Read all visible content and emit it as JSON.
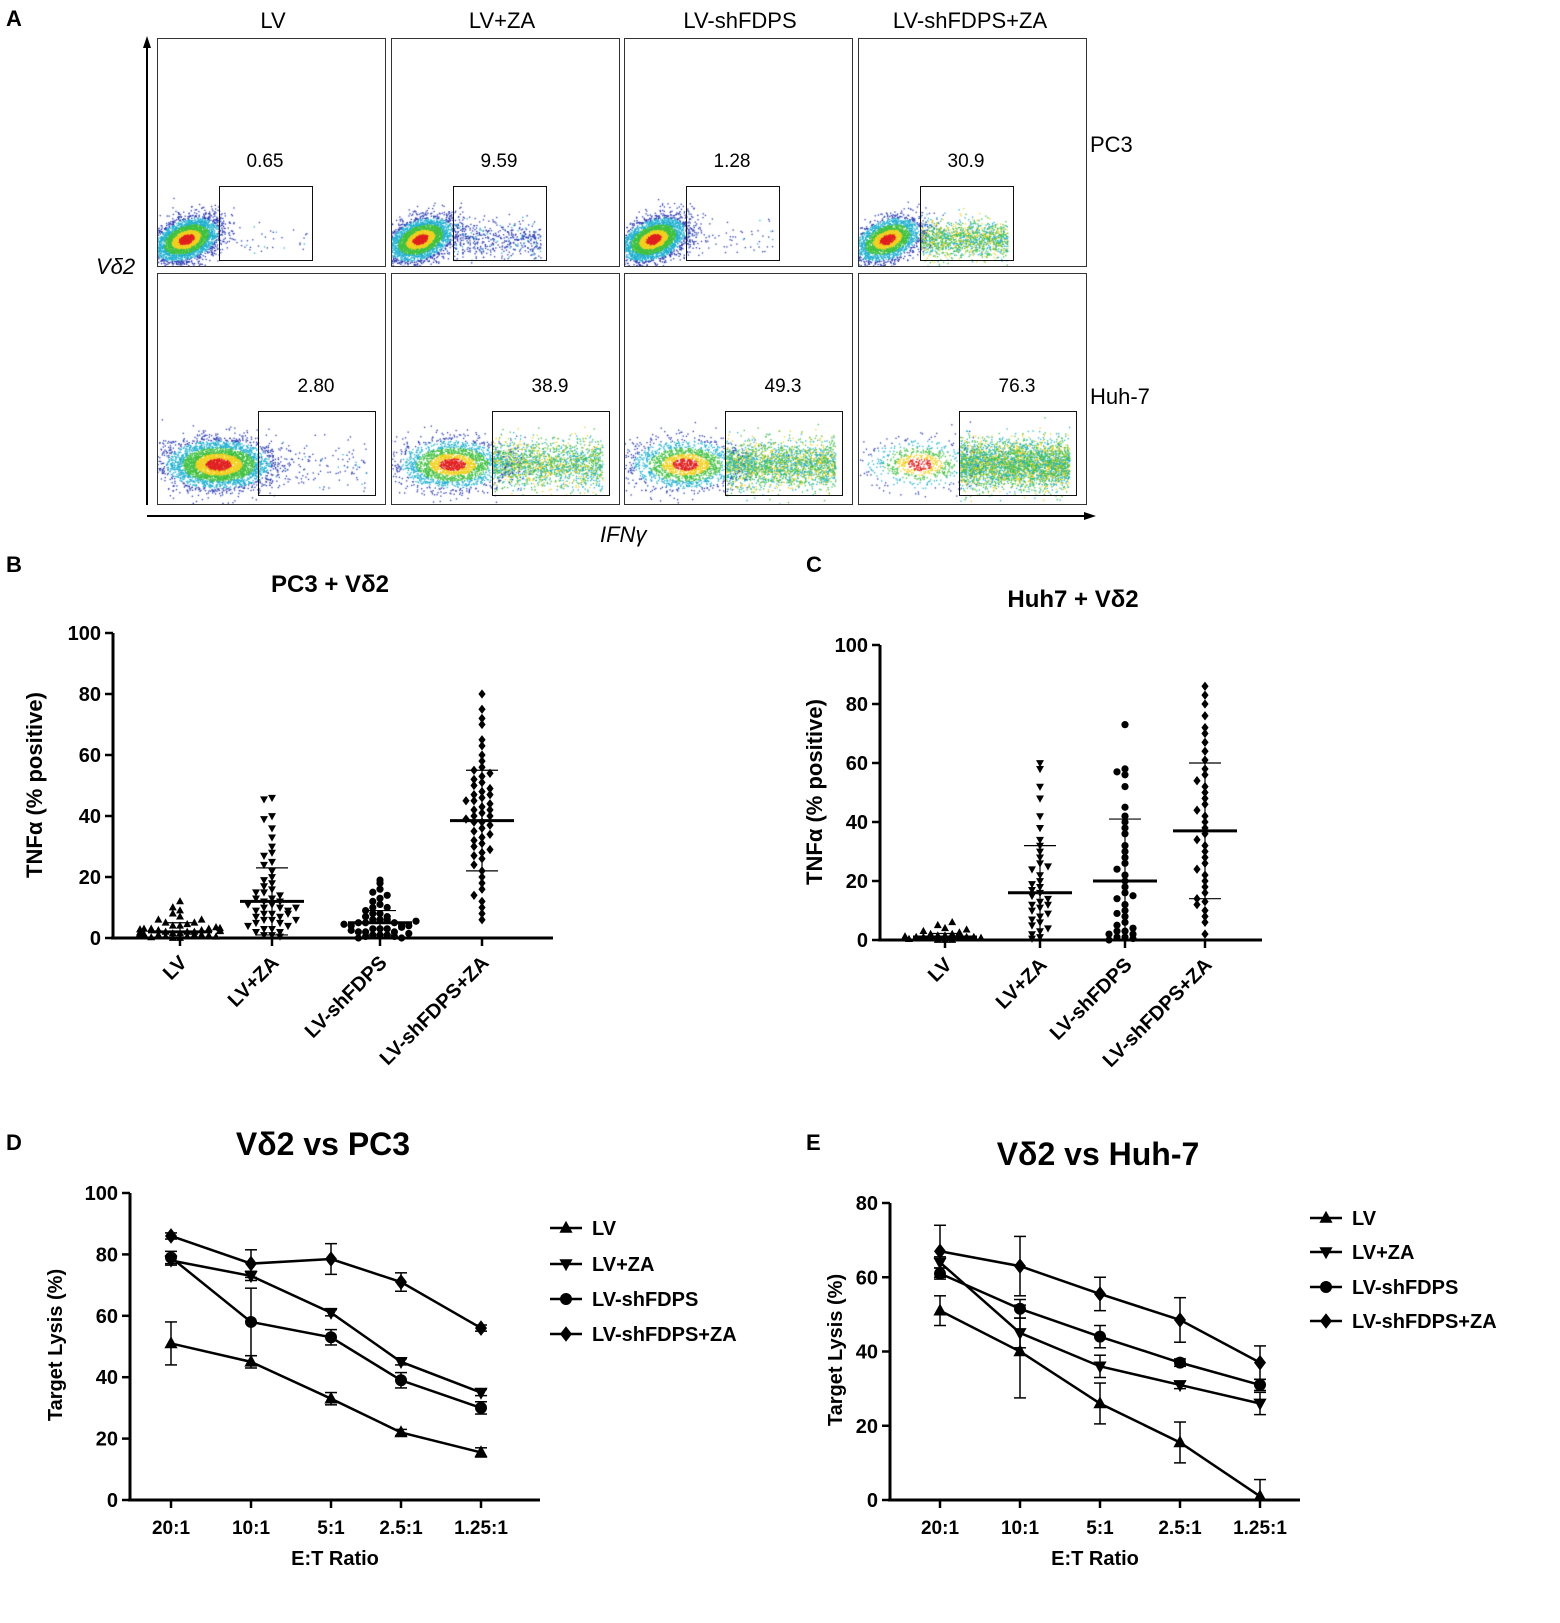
{
  "panel_labels": {
    "a": "A",
    "b": "B",
    "c": "C",
    "d": "D",
    "e": "E"
  },
  "panel_a": {
    "columns": [
      "LV",
      "LV+ZA",
      "LV-shFDPS",
      "LV-shFDPS+ZA"
    ],
    "rows": [
      "PC3",
      "Huh-7"
    ],
    "y_axis_label": "Vδ2",
    "x_axis_label": "IFNγ",
    "gate_values": [
      [
        "0.65",
        "9.59",
        "1.28",
        "30.9"
      ],
      [
        "2.80",
        "38.9",
        "49.3",
        "76.3"
      ]
    ]
  },
  "chart_data": [
    {
      "id": "B",
      "type": "scatter",
      "title": "PC3 + Vδ2",
      "ylabel": "TNFα (% positive)",
      "xlabel": "",
      "ylim": [
        0,
        100
      ],
      "yticks": [
        0,
        20,
        40,
        60,
        80,
        100
      ],
      "categories": [
        "LV",
        "LV+ZA",
        "LV-shFDPS",
        "LV-shFDPS+ZA"
      ],
      "groups": [
        {
          "name": "LV",
          "marker": "triangle-up",
          "mean": 2,
          "sd": 3,
          "points": [
            0,
            0,
            0.5,
            0.5,
            1,
            1,
            1,
            1.5,
            1.5,
            2,
            2,
            2,
            2.5,
            2.5,
            3,
            3,
            3,
            3.5,
            4,
            4,
            4.5,
            5,
            5,
            6,
            6,
            7,
            8,
            9,
            10,
            12,
            0.2,
            0.8,
            1.2,
            1.8,
            2.2,
            2.8,
            3.2,
            0.4,
            1.4,
            2.4
          ]
        },
        {
          "name": "LV+ZA",
          "marker": "triangle-down",
          "mean": 12,
          "sd": 11,
          "points": [
            46,
            45.5,
            40,
            39,
            36,
            33,
            30,
            28,
            27,
            25,
            24,
            22,
            20,
            19,
            18,
            17,
            16,
            15,
            14,
            13,
            12,
            12,
            11,
            10,
            10,
            9,
            9,
            8,
            8,
            7,
            7,
            6,
            6,
            5,
            5,
            4,
            4,
            3,
            3,
            2,
            2,
            1,
            1,
            0.5,
            15,
            11,
            13,
            6,
            8,
            10
          ]
        },
        {
          "name": "LV-shFDPS",
          "marker": "circle",
          "mean": 5,
          "sd": 4,
          "points": [
            19,
            18,
            16,
            15,
            14,
            13,
            12,
            11,
            10,
            10,
            9,
            8,
            8,
            7,
            7,
            6,
            6,
            6,
            5,
            5,
            5,
            4,
            4,
            4,
            3,
            3,
            3,
            2,
            2,
            2,
            1,
            1,
            1,
            0.5,
            0.5,
            0,
            0,
            3.5,
            4.5,
            2.5,
            1.5,
            5.5
          ]
        },
        {
          "name": "LV-shFDPS+ZA",
          "marker": "diamond",
          "mean": 38.5,
          "sd": 16.5,
          "points": [
            80,
            75,
            72,
            70,
            65,
            63,
            60,
            58,
            56,
            55,
            54,
            53,
            52,
            51,
            50,
            49,
            48,
            47,
            46,
            45,
            44,
            43,
            42,
            41,
            40,
            40,
            39,
            38,
            38,
            37,
            36,
            35,
            34,
            33,
            32,
            31,
            30,
            29,
            28,
            27,
            26,
            24,
            22,
            20,
            18,
            16,
            14,
            12,
            10,
            8,
            6,
            45,
            42,
            47
          ]
        }
      ]
    },
    {
      "id": "C",
      "type": "scatter",
      "title": "Huh7 + Vδ2",
      "ylabel": "TNFα (% positive)",
      "xlabel": "",
      "ylim": [
        0,
        100
      ],
      "yticks": [
        0,
        20,
        40,
        60,
        80,
        100
      ],
      "categories": [
        "LV",
        "LV+ZA",
        "LV-shFDPS",
        "LV-shFDPS+ZA"
      ],
      "groups": [
        {
          "name": "LV",
          "marker": "triangle-up",
          "mean": 1,
          "sd": 1.2,
          "points": [
            0,
            0,
            0,
            0.5,
            0.5,
            1,
            1,
            1,
            1,
            1.5,
            1.5,
            2,
            2,
            2.5,
            3,
            3.5,
            4,
            5,
            6,
            0.3,
            0.7,
            1.2
          ]
        },
        {
          "name": "LV+ZA",
          "marker": "triangle-down",
          "mean": 16,
          "sd": 16,
          "points": [
            60,
            58,
            52,
            48,
            42,
            38,
            34,
            32,
            30,
            28,
            26,
            24,
            22,
            20,
            19,
            18,
            17,
            16,
            15,
            14,
            13,
            12,
            11,
            10,
            9,
            8,
            7,
            6,
            5,
            4,
            3,
            2,
            1,
            0.5,
            25,
            12
          ]
        },
        {
          "name": "LV-shFDPS",
          "marker": "circle",
          "mean": 20,
          "sd": 21,
          "points": [
            73,
            58,
            57,
            56,
            52,
            45,
            42,
            40,
            38,
            36,
            32,
            30,
            28,
            26,
            24,
            22,
            20,
            18,
            16,
            14,
            12,
            10,
            8,
            6,
            5,
            4,
            3,
            3,
            2,
            2,
            1,
            1,
            0.5,
            0,
            15,
            9
          ]
        },
        {
          "name": "LV-shFDPS+ZA",
          "marker": "diamond",
          "mean": 37,
          "sd": 23,
          "points": [
            86,
            83,
            80,
            76,
            72,
            70,
            67,
            64,
            61,
            58,
            56,
            54,
            52,
            50,
            48,
            46,
            44,
            42,
            40,
            38,
            36,
            34,
            32,
            30,
            28,
            26,
            24,
            22,
            20,
            18,
            16,
            14,
            13,
            12,
            10,
            8,
            6,
            2
          ]
        }
      ]
    },
    {
      "id": "D",
      "type": "line",
      "title": "Vδ2 vs PC3",
      "ylabel": "Target Lysis (%)",
      "xlabel": "E:T Ratio",
      "ylim": [
        0,
        100
      ],
      "yticks": [
        0,
        20,
        40,
        60,
        80,
        100
      ],
      "x": [
        "20:1",
        "10:1",
        "5:1",
        "2.5:1",
        "1.25:1"
      ],
      "legend": "right",
      "series": [
        {
          "name": "LV",
          "marker": "triangle-up",
          "values": [
            51,
            45,
            33,
            22,
            15.5
          ],
          "err": [
            7,
            2,
            2,
            1,
            1.5
          ]
        },
        {
          "name": "LV+ZA",
          "marker": "triangle-down",
          "values": [
            78,
            73,
            61,
            45,
            35
          ],
          "err": [
            1.5,
            1.5,
            1,
            1,
            1
          ]
        },
        {
          "name": "LV-shFDPS",
          "marker": "circle",
          "values": [
            79,
            58,
            53,
            39,
            30
          ],
          "err": [
            2,
            11,
            2.5,
            2.5,
            2
          ]
        },
        {
          "name": "LV-shFDPS+ZA",
          "marker": "diamond",
          "values": [
            86,
            77,
            78.5,
            71,
            56
          ],
          "err": [
            1,
            4.5,
            5,
            3,
            1
          ]
        }
      ]
    },
    {
      "id": "E",
      "type": "line",
      "title": "Vδ2 vs Huh-7",
      "ylabel": "Target Lysis (%)",
      "xlabel": "E:T Ratio",
      "ylim": [
        0,
        80
      ],
      "yticks": [
        0,
        20,
        40,
        60,
        80
      ],
      "x": [
        "20:1",
        "10:1",
        "5:1",
        "2.5:1",
        "1.25:1"
      ],
      "legend": "right",
      "series": [
        {
          "name": "LV",
          "marker": "triangle-up",
          "values": [
            51,
            40,
            26,
            15.5,
            1
          ],
          "err": [
            4,
            12.5,
            5.5,
            5.5,
            4.5
          ]
        },
        {
          "name": "LV+ZA",
          "marker": "triangle-down",
          "values": [
            64,
            45,
            36,
            31,
            26
          ],
          "err": [
            1.5,
            4,
            3,
            1,
            3
          ]
        },
        {
          "name": "LV-shFDPS",
          "marker": "circle",
          "values": [
            61,
            51.5,
            44,
            37,
            31
          ],
          "err": [
            1.5,
            2.5,
            3,
            1,
            1.5
          ]
        },
        {
          "name": "LV-shFDPS+ZA",
          "marker": "diamond",
          "values": [
            67,
            63,
            55.5,
            48.5,
            37
          ],
          "err": [
            7,
            8,
            4.5,
            6,
            4.5
          ]
        }
      ]
    }
  ]
}
